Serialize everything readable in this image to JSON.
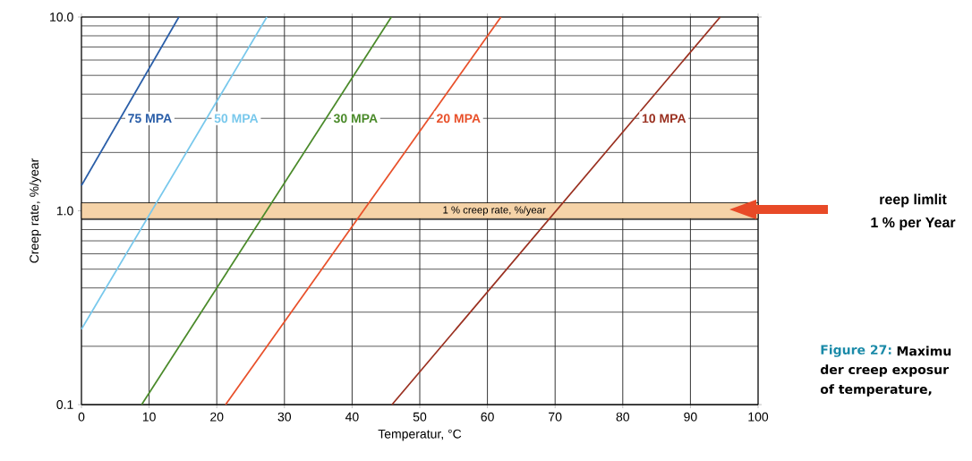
{
  "chart_data": {
    "type": "line",
    "xlabel": "Temperatur, °C",
    "ylabel": "Creep rate, %/year",
    "log": "y",
    "grid": true,
    "xlim": [
      0,
      100
    ],
    "xticks": [
      0,
      10,
      20,
      30,
      40,
      50,
      60,
      70,
      80,
      90,
      100
    ],
    "ylim": [
      0.1,
      10
    ],
    "yticks": [
      {
        "value": 0.1,
        "label": "0.1"
      },
      {
        "value": 1,
        "label": "1.0"
      },
      {
        "value": 10,
        "label": "10.0"
      }
    ],
    "series": [
      {
        "name": "75 MPA",
        "color": "#2a5ea8",
        "x": [
          0,
          14.4
        ],
        "values": [
          1.35,
          10
        ]
      },
      {
        "name": "50 MPA",
        "color": "#78c8ec",
        "x": [
          0,
          27.4
        ],
        "values": [
          0.245,
          10
        ]
      },
      {
        "name": "30 MPA",
        "color": "#4a8a2a",
        "x": [
          8.9,
          45.8
        ],
        "values": [
          0.1,
          10
        ]
      },
      {
        "name": "20 MPA",
        "color": "#e8502a",
        "x": [
          21.3,
          62.0
        ],
        "values": [
          0.1,
          10
        ]
      },
      {
        "name": "10 MPA",
        "color": "#9a3020",
        "x": [
          45.9,
          94.4
        ],
        "values": [
          0.1,
          10
        ]
      }
    ],
    "bands": [
      {
        "axis": "y",
        "from": 0.91,
        "to": 1.1,
        "label": "1 % creep rate, %/year",
        "color": "#f5d3a8"
      }
    ],
    "annotations": [
      "reep limlit",
      "1 % per Year",
      "Figure 27:",
      "Maximu",
      "der creep exposur",
      "of temperature,"
    ]
  }
}
